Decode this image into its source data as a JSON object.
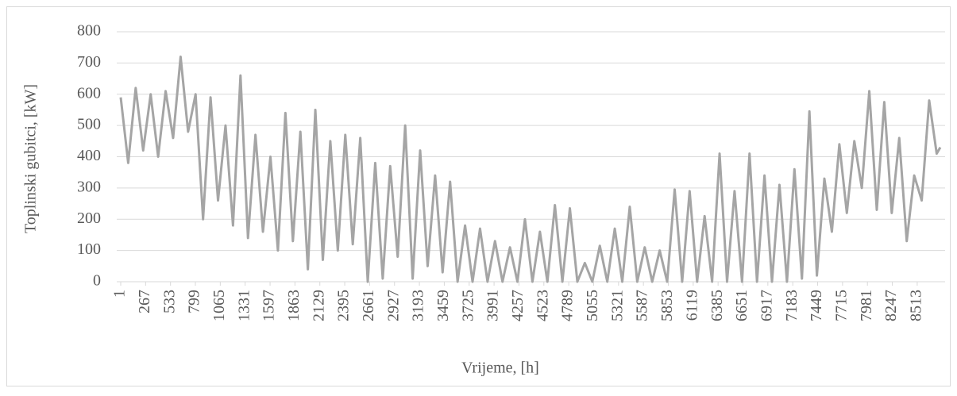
{
  "chart_data": {
    "type": "line",
    "y_label": "Toplinski gubitci, [kW]",
    "x_label": "Vrijeme, [h]",
    "color": "#a5a5a5",
    "grid": true,
    "xlim": [
      1,
      8760
    ],
    "ylim": [
      0,
      800
    ],
    "yticks": [
      0,
      100,
      200,
      300,
      400,
      500,
      600,
      700,
      800
    ],
    "xticks": [
      1,
      267,
      533,
      799,
      1065,
      1331,
      1597,
      1863,
      2129,
      2395,
      2661,
      2927,
      3193,
      3459,
      3725,
      3991,
      4257,
      4523,
      4789,
      5055,
      5321,
      5587,
      5853,
      6119,
      6385,
      6651,
      6917,
      7183,
      7449,
      7715,
      7981,
      8247,
      8513
    ],
    "x": [
      1,
      81,
      161,
      241,
      321,
      401,
      481,
      561,
      641,
      721,
      801,
      881,
      961,
      1041,
      1121,
      1201,
      1281,
      1361,
      1441,
      1521,
      1601,
      1681,
      1761,
      1841,
      1921,
      2001,
      2081,
      2161,
      2241,
      2321,
      2401,
      2481,
      2561,
      2641,
      2721,
      2801,
      2881,
      2961,
      3041,
      3121,
      3201,
      3281,
      3361,
      3441,
      3521,
      3601,
      3681,
      3761,
      3841,
      3921,
      4001,
      4081,
      4161,
      4241,
      4321,
      4401,
      4481,
      4561,
      4641,
      4721,
      4801,
      4881,
      4961,
      5041,
      5121,
      5201,
      5281,
      5361,
      5441,
      5521,
      5601,
      5681,
      5761,
      5841,
      5921,
      6001,
      6081,
      6161,
      6241,
      6321,
      6401,
      6481,
      6561,
      6641,
      6721,
      6801,
      6881,
      6961,
      7041,
      7121,
      7201,
      7281,
      7361,
      7441,
      7521,
      7601,
      7681,
      7761,
      7841,
      7921,
      8001,
      8081,
      8161,
      8241,
      8321,
      8401,
      8481,
      8561,
      8641,
      8721,
      8760
    ],
    "values": [
      590,
      380,
      620,
      420,
      600,
      400,
      610,
      460,
      720,
      480,
      600,
      200,
      590,
      260,
      500,
      180,
      660,
      140,
      470,
      160,
      400,
      100,
      540,
      130,
      480,
      40,
      550,
      70,
      450,
      100,
      470,
      120,
      460,
      0,
      380,
      10,
      370,
      80,
      500,
      10,
      420,
      50,
      340,
      30,
      320,
      0,
      180,
      0,
      170,
      0,
      130,
      0,
      110,
      0,
      200,
      0,
      160,
      0,
      245,
      0,
      235,
      0,
      60,
      0,
      115,
      0,
      170,
      0,
      240,
      0,
      110,
      0,
      100,
      0,
      295,
      0,
      290,
      0,
      210,
      0,
      410,
      0,
      290,
      0,
      410,
      0,
      340,
      0,
      310,
      0,
      360,
      10,
      545,
      20,
      330,
      160,
      440,
      220,
      450,
      300,
      610,
      230,
      575,
      220,
      460,
      130,
      340,
      260,
      580,
      410,
      430
    ]
  }
}
